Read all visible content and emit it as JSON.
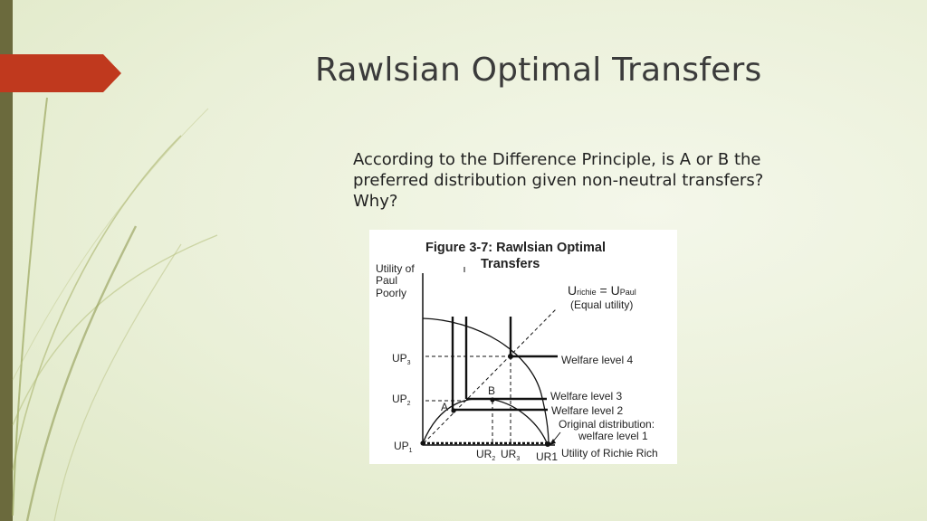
{
  "slide": {
    "title": "Rawlsian Optimal Transfers",
    "question": "According to the Difference Principle,  is A or B the preferred  distribution given non-neutral transfers? Why?"
  },
  "figure": {
    "title_line1": "Figure 3-7: Rawlsian Optimal",
    "title_line2": "Transfers",
    "y_axis_label": [
      "Utility of",
      "Paul",
      "Poorly"
    ],
    "x_axis_label": "Utility of Richie Rich",
    "equal_utility": {
      "u1": "U",
      "sub1": "richie",
      "eq": " = ",
      "u2": "U",
      "sub2": "Paul",
      "note": "(Equal utility)"
    },
    "y_ticks": [
      {
        "main": "UP",
        "sub": "3"
      },
      {
        "main": "UP",
        "sub": "2"
      },
      {
        "main": "UP",
        "sub": "1"
      }
    ],
    "x_ticks": [
      {
        "main": "UR",
        "sub": "2"
      },
      {
        "main": "UR",
        "sub": "3"
      },
      {
        "main": "UR1",
        "sub": ""
      }
    ],
    "points": {
      "a": "A",
      "b": "B"
    },
    "welfare_levels": [
      "Welfare level 4",
      "Welfare level 3",
      "Welfare level 2"
    ],
    "original_distribution": [
      "Original distribution:",
      "welfare level 1"
    ]
  },
  "colors": {
    "accent": "#c0391e",
    "side_bar": "#6b6a3d",
    "title_text": "#3b3b3b"
  }
}
